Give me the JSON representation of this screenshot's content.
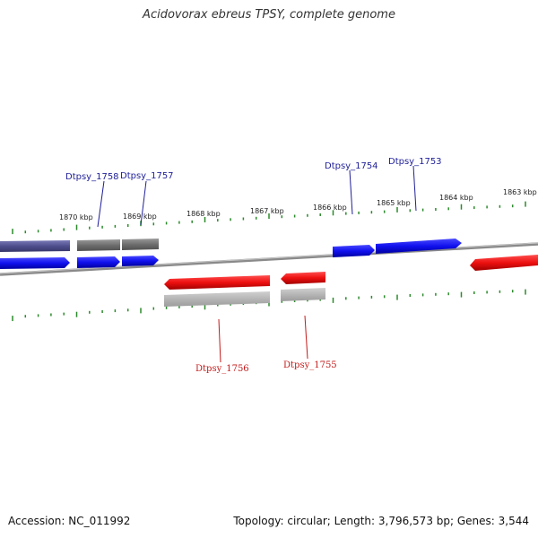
{
  "title": "Acidovorax ebreus TPSY, complete genome",
  "footer": {
    "accession": "Accession: NC_011992",
    "summary": "Topology: circular; Length: 3,796,573 bp; Genes: 3,544"
  },
  "colors": {
    "forward_gene": "#1a1aff",
    "reverse_gene": "#ff1a1a",
    "gray_feature": "#808080",
    "purple_feature": "#5a5a9a",
    "tick": "#2b8a2b",
    "backbone": "#808080",
    "label_forward": "#1f1f99",
    "label_reverse": "#c41a1a"
  },
  "scale": {
    "unit": "kbp",
    "labels": [
      "1870 kbp",
      "1869 kbp",
      "1868 kbp",
      "1867 kbp",
      "1866 kbp",
      "1865 kbp",
      "1864 kbp",
      "1863 kbp"
    ]
  },
  "genes": [
    {
      "name": "Dtpsy_1758",
      "strand": "+"
    },
    {
      "name": "Dtpsy_1757",
      "strand": "+"
    },
    {
      "name": "Dtpsy_1754",
      "strand": "+"
    },
    {
      "name": "Dtpsy_1753",
      "strand": "+"
    },
    {
      "name": "Dtpsy_1756",
      "strand": "-"
    },
    {
      "name": "Dtpsy_1755",
      "strand": "-"
    }
  ]
}
